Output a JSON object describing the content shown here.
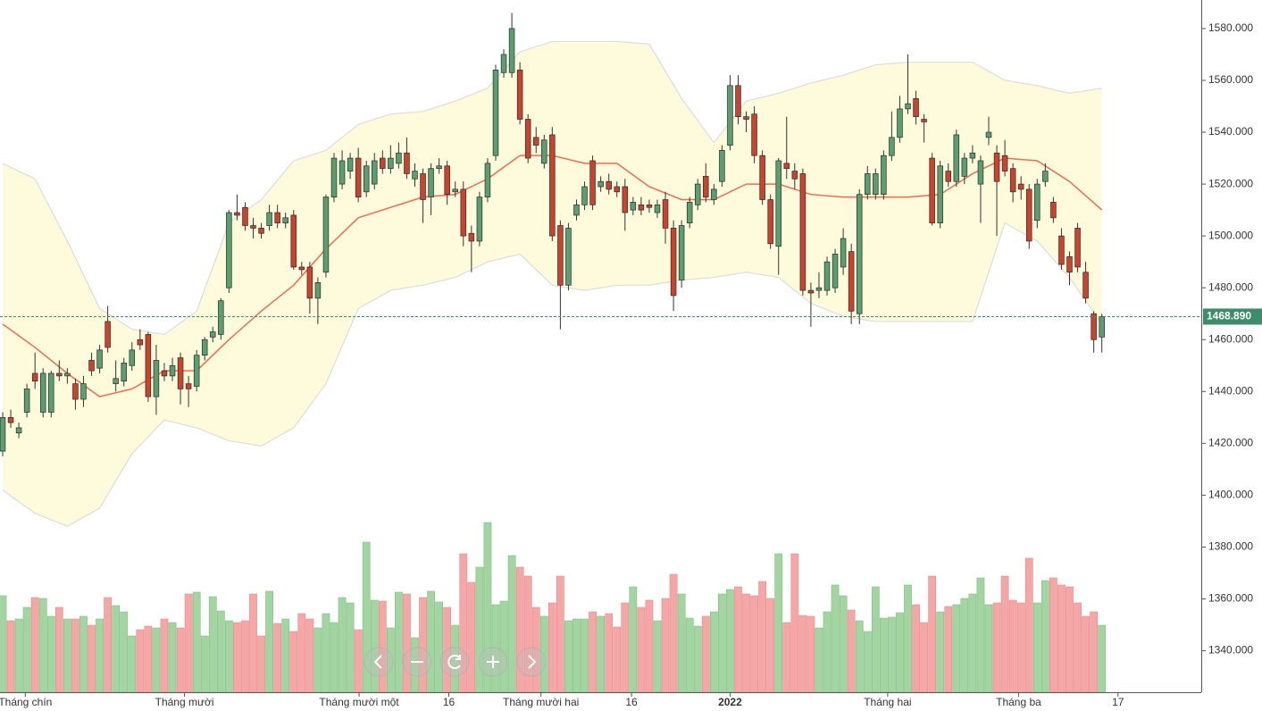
{
  "chart_data": {
    "type": "candlestick",
    "xlim": [
      -0.33,
      148.3
    ],
    "ylim": [
      1324,
      1591
    ],
    "vlim": [
      0,
      200
    ],
    "yticks": [
      {
        "value": 1340,
        "label": "1340.000"
      },
      {
        "value": 1360,
        "label": "1360.000"
      },
      {
        "value": 1380,
        "label": "1380.000"
      },
      {
        "value": 1400,
        "label": "1400.000"
      },
      {
        "value": 1420,
        "label": "1420.000"
      },
      {
        "value": 1440,
        "label": "1440.000"
      },
      {
        "value": 1460,
        "label": "1460.000"
      },
      {
        "value": 1480,
        "label": "1480.000"
      },
      {
        "value": 1500,
        "label": "1500.000"
      },
      {
        "value": 1520,
        "label": "1520.000"
      },
      {
        "value": 1540,
        "label": "1540.000"
      },
      {
        "value": 1560,
        "label": "1560.000"
      },
      {
        "value": 1580,
        "label": "1580.000"
      }
    ],
    "xticks": [
      {
        "value": 2.8,
        "label": "Tháng chín"
      },
      {
        "value": 22.5,
        "label": "Tháng mười"
      },
      {
        "value": 44.1,
        "label": "Tháng mười một"
      },
      {
        "value": 55.2,
        "label": "16"
      },
      {
        "value": 66.6,
        "label": "Tháng mười hai"
      },
      {
        "value": 77.8,
        "label": "16"
      },
      {
        "value": 90,
        "label": "2022",
        "bold": true
      },
      {
        "value": 109.5,
        "label": "Tháng hai"
      },
      {
        "value": 125.7,
        "label": "Tháng ba"
      },
      {
        "value": 138,
        "label": "17"
      }
    ],
    "up_color": "#5b9e6f",
    "down_color": "#c9432f",
    "up_volume_color": "#a3d5a3",
    "down_volume_color": "#f5a6a6",
    "band_fill": "#fdfbdc",
    "band_color": "#dddddd",
    "middle_color": "#f26b4f",
    "last_price": {
      "value": 1468.89,
      "label": "1468.890",
      "color": "#3d8c6a"
    },
    "open": [
      1417,
      1430,
      1424,
      1432,
      1447,
      1432,
      1432,
      1447,
      1446,
      1443,
      1437,
      1452,
      1449,
      1467,
      1443,
      1444,
      1450,
      1460,
      1462,
      1438,
      1448,
      1446,
      1453,
      1443,
      1442,
      1454,
      1461,
      1462,
      1480,
      1509,
      1511,
      1504,
      1503,
      1504,
      1509,
      1505,
      1508,
      1488,
      1488,
      1476,
      1486,
      1515,
      1520,
      1525,
      1530,
      1517,
      1520,
      1530,
      1526,
      1528,
      1532,
      1522,
      1524,
      1515,
      1526,
      1527,
      1517,
      1518,
      1501,
      1498,
      1515,
      1531,
      1563,
      1563,
      1564,
      1545,
      1538,
      1528,
      1539,
      1504,
      1481,
      1508,
      1512,
      1529,
      1519,
      1521,
      1519,
      1519,
      1510,
      1512,
      1512,
      1509,
      1514,
      1503,
      1483,
      1505,
      1512,
      1523,
      1514,
      1521,
      1535,
      1558,
      1546,
      1547,
      1531,
      1514,
      1496,
      1528,
      1525,
      1524,
      1479,
      1479,
      1479,
      1480,
      1488,
      1494,
      1470,
      1516,
      1516,
      1516,
      1531,
      1538,
      1549,
      1553,
      1545,
      1530,
      1505,
      1525,
      1521,
      1523,
      1530,
      1520,
      1538,
      1532,
      1531,
      1526,
      1520,
      1518,
      1506,
      1521,
      1513,
      1500,
      1492,
      1503,
      1486,
      1470,
      1461
    ],
    "high": [
      1432,
      1433,
      1428,
      1443,
      1455,
      1449,
      1448,
      1452,
      1449,
      1445,
      1446,
      1455,
      1458,
      1473,
      1452,
      1453,
      1459,
      1464,
      1463,
      1458,
      1451,
      1453,
      1455,
      1446,
      1456,
      1461,
      1465,
      1476,
      1510,
      1516,
      1513,
      1507,
      1505,
      1512,
      1512,
      1509,
      1510,
      1490,
      1490,
      1484,
      1516,
      1532,
      1533,
      1532,
      1534,
      1529,
      1532,
      1533,
      1535,
      1536,
      1538,
      1528,
      1526,
      1528,
      1530,
      1529,
      1521,
      1521,
      1504,
      1517,
      1530,
      1566,
      1572,
      1586,
      1567,
      1547,
      1542,
      1539,
      1542,
      1506,
      1505,
      1514,
      1521,
      1531,
      1523,
      1524,
      1521,
      1522,
      1515,
      1515,
      1514,
      1514,
      1517,
      1506,
      1506,
      1515,
      1522,
      1528,
      1520,
      1535,
      1562,
      1562,
      1548,
      1550,
      1533,
      1516,
      1530,
      1546,
      1528,
      1526,
      1482,
      1486,
      1492,
      1495,
      1503,
      1497,
      1518,
      1527,
      1526,
      1533,
      1548,
      1554,
      1570,
      1556,
      1547,
      1532,
      1529,
      1528,
      1541,
      1532,
      1535,
      1531,
      1546,
      1535,
      1537,
      1528,
      1523,
      1520,
      1522,
      1528,
      1515,
      1503,
      1494,
      1505,
      1490,
      1471,
      1470
    ],
    "low": [
      1415,
      1426,
      1422,
      1430,
      1441,
      1430,
      1430,
      1444,
      1443,
      1433,
      1434,
      1446,
      1447,
      1455,
      1440,
      1442,
      1448,
      1456,
      1436,
      1431,
      1444,
      1444,
      1435,
      1434,
      1440,
      1452,
      1459,
      1460,
      1478,
      1506,
      1502,
      1499,
      1499,
      1502,
      1503,
      1503,
      1487,
      1485,
      1470,
      1466,
      1484,
      1513,
      1518,
      1522,
      1513,
      1515,
      1518,
      1524,
      1524,
      1526,
      1522,
      1519,
      1505,
      1508,
      1524,
      1512,
      1515,
      1496,
      1486,
      1496,
      1513,
      1529,
      1561,
      1561,
      1543,
      1528,
      1532,
      1526,
      1498,
      1464,
      1479,
      1506,
      1510,
      1510,
      1517,
      1516,
      1515,
      1502,
      1508,
      1508,
      1509,
      1507,
      1497,
      1471,
      1480,
      1503,
      1510,
      1513,
      1512,
      1519,
      1533,
      1543,
      1540,
      1528,
      1512,
      1495,
      1485,
      1522,
      1518,
      1477,
      1465,
      1476,
      1477,
      1478,
      1485,
      1466,
      1466,
      1514,
      1514,
      1514,
      1529,
      1536,
      1547,
      1543,
      1536,
      1504,
      1503,
      1519,
      1519,
      1520,
      1528,
      1505,
      1535,
      1500,
      1523,
      1513,
      1514,
      1495,
      1503,
      1519,
      1505,
      1487,
      1481,
      1486,
      1474,
      1455,
      1455
    ],
    "close": [
      1430,
      1428,
      1426,
      1441,
      1444,
      1447,
      1447,
      1446,
      1447,
      1437,
      1443,
      1448,
      1456,
      1457,
      1445,
      1451,
      1456,
      1458,
      1438,
      1452,
      1446,
      1450,
      1441,
      1441,
      1454,
      1460,
      1463,
      1475,
      1509,
      1508,
      1504,
      1503,
      1501,
      1509,
      1505,
      1507,
      1488,
      1487,
      1476,
      1482,
      1515,
      1530,
      1529,
      1530,
      1515,
      1527,
      1529,
      1526,
      1530,
      1532,
      1524,
      1525,
      1514,
      1526,
      1527,
      1516,
      1518,
      1500,
      1498,
      1515,
      1528,
      1564,
      1570,
      1580,
      1545,
      1530,
      1535,
      1537,
      1500,
      1481,
      1503,
      1512,
      1519,
      1512,
      1521,
      1518,
      1517,
      1509,
      1513,
      1510,
      1511,
      1512,
      1503,
      1477,
      1504,
      1513,
      1520,
      1515,
      1518,
      1533,
      1558,
      1546,
      1545,
      1531,
      1514,
      1497,
      1529,
      1526,
      1522,
      1479,
      1478,
      1480,
      1490,
      1493,
      1499,
      1471,
      1516,
      1524,
      1524,
      1531,
      1538,
      1549,
      1551,
      1546,
      1544,
      1505,
      1527,
      1521,
      1539,
      1530,
      1532,
      1529,
      1540,
      1521,
      1525,
      1517,
      1518,
      1498,
      1520,
      1525,
      1507,
      1489,
      1486,
      1488,
      1476,
      1460,
      1468.89
    ],
    "volume": [
      108,
      80,
      82,
      95,
      106,
      105,
      85,
      95,
      82,
      82,
      85,
      75,
      82,
      106,
      97,
      90,
      63,
      70,
      74,
      72,
      82,
      78,
      72,
      110,
      112,
      63,
      107,
      91,
      80,
      78,
      80,
      110,
      63,
      113,
      77,
      82,
      68,
      88,
      82,
      72,
      88,
      78,
      106,
      100,
      70,
      168,
      103,
      102,
      72,
      112,
      110,
      61,
      106,
      113,
      101,
      95,
      75,
      155,
      123,
      140,
      190,
      98,
      102,
      153,
      140,
      130,
      95,
      85,
      100,
      130,
      80,
      82,
      82,
      90,
      85,
      88,
      73,
      100,
      118,
      95,
      103,
      80,
      105,
      132,
      110,
      83,
      74,
      85,
      90,
      110,
      115,
      118,
      110,
      108,
      124,
      105,
      155,
      78,
      155,
      86,
      85,
      72,
      90,
      120,
      108,
      92,
      80,
      68,
      118,
      83,
      84,
      89,
      120,
      98,
      78,
      130,
      90,
      96,
      98,
      105,
      110,
      128,
      98,
      100,
      130,
      103,
      100,
      150,
      100,
      125,
      128,
      120,
      118,
      100,
      85,
      90,
      75
    ],
    "bands": {
      "x": [
        0,
        4,
        8,
        12,
        16,
        20,
        24,
        28,
        32,
        36,
        40,
        44,
        48,
        52,
        56,
        60,
        64,
        68,
        72,
        76,
        80,
        84,
        88,
        92,
        96,
        100,
        104,
        108,
        112,
        116,
        120,
        124,
        128,
        132,
        136
      ],
      "upper": [
        1528,
        1522,
        1498,
        1472,
        1464,
        1462,
        1471,
        1505,
        1514,
        1529,
        1533,
        1543,
        1547,
        1548,
        1552,
        1557,
        1571,
        1575,
        1575,
        1575,
        1574,
        1553,
        1536,
        1552,
        1555,
        1559,
        1562,
        1566,
        1567,
        1567,
        1567,
        1560,
        1558,
        1555,
        1557
      ],
      "middle": [
        1466,
        1457,
        1447,
        1438,
        1441,
        1448,
        1448,
        1460,
        1471,
        1481,
        1495,
        1507,
        1511,
        1515,
        1516,
        1522,
        1531,
        1531,
        1528,
        1528,
        1519,
        1514,
        1514,
        1520,
        1520,
        1516,
        1515,
        1515,
        1515,
        1516,
        1524,
        1530,
        1529,
        1521,
        1510
      ],
      "lower": [
        1402,
        1393,
        1388,
        1395,
        1416,
        1429,
        1426,
        1421,
        1419,
        1426,
        1443,
        1472,
        1479,
        1481,
        1484,
        1490,
        1493,
        1481,
        1479,
        1481,
        1481,
        1483,
        1484,
        1486,
        1484,
        1474,
        1469,
        1467,
        1467,
        1467,
        1467,
        1505,
        1498,
        1484,
        1466
      ]
    }
  }
}
